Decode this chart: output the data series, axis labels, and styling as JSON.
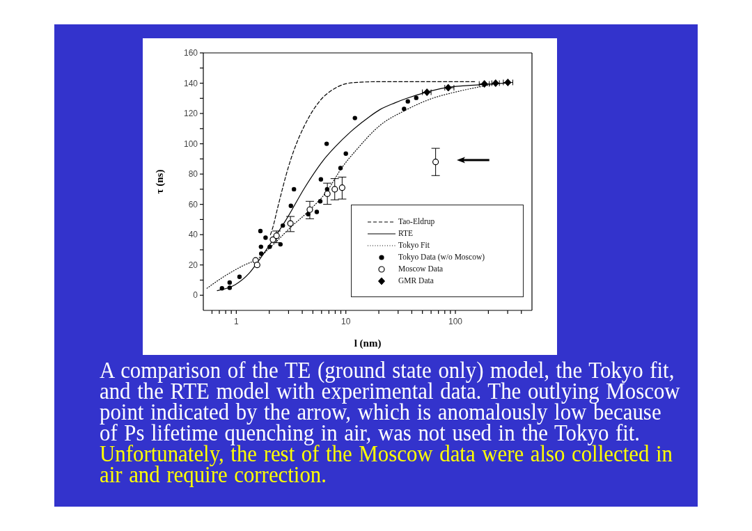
{
  "chart_data": {
    "type": "scatter",
    "xlabel": "l (nm)",
    "ylabel": "τ (ns)",
    "log": "x",
    "legend": "bottom right",
    "xlim": [
      0.5,
      500
    ],
    "ylim": [
      -10,
      160
    ],
    "xticks": [
      {
        "value": 0.6,
        "label": null
      },
      {
        "value": 0.7,
        "label": null
      },
      {
        "value": 0.8,
        "label": null
      },
      {
        "value": 0.9,
        "label": null
      },
      1,
      {
        "value": 2,
        "label": null
      },
      {
        "value": 3,
        "label": null
      },
      {
        "value": 4,
        "label": null
      },
      {
        "value": 5,
        "label": null
      },
      {
        "value": 6,
        "label": null
      },
      {
        "value": 7,
        "label": null
      },
      {
        "value": 8,
        "label": null
      },
      {
        "value": 9,
        "label": null
      },
      10,
      {
        "value": 20,
        "label": null
      },
      {
        "value": 30,
        "label": null
      },
      {
        "value": 40,
        "label": null
      },
      {
        "value": 50,
        "label": null
      },
      {
        "value": 60,
        "label": null
      },
      {
        "value": 70,
        "label": null
      },
      {
        "value": 80,
        "label": null
      },
      {
        "value": 90,
        "label": null
      },
      100,
      {
        "value": 200,
        "label": null
      },
      {
        "value": 300,
        "label": null
      },
      {
        "value": 400,
        "label": null
      }
    ],
    "yticks": [
      0,
      {
        "value": 10,
        "label": null
      },
      20,
      {
        "value": 30,
        "label": null
      },
      40,
      {
        "value": 50,
        "label": null
      },
      60,
      {
        "value": 70,
        "label": null
      },
      80,
      {
        "value": 90,
        "label": null
      },
      100,
      {
        "value": 110,
        "label": null
      },
      120,
      {
        "value": 130,
        "label": null
      },
      140,
      {
        "value": 150,
        "label": null
      },
      160
    ],
    "series": [
      {
        "name": "Tao-Eldrup",
        "type": "line",
        "color": "#000000",
        "line_style": "dashed",
        "marker": "none",
        "x": [
          2.05,
          2.14,
          2.39,
          3.0,
          4.64,
          5.74,
          7.9,
          11.4,
          20,
          150
        ],
        "values": [
          40,
          44,
          58,
          85,
          118,
          128,
          136.5,
          140.3,
          141,
          141
        ]
      },
      {
        "name": "RTE",
        "type": "line",
        "color": "#000000",
        "line_style": "solid",
        "marker": "none",
        "x": [
          0.67,
          0.98,
          1.31,
          1.68,
          2.14,
          2.86,
          4.21,
          6.21,
          8,
          11.1,
          16.5,
          20.4,
          28,
          36,
          54,
          81,
          170,
          320
        ],
        "values": [
          3,
          7,
          14.5,
          25,
          36,
          50,
          71,
          89,
          98,
          108,
          118,
          122.5,
          127,
          130,
          134,
          137,
          139,
          140.3
        ]
      },
      {
        "name": "Tokyo Fit",
        "type": "line",
        "color": "#000000",
        "line_style": "dotted",
        "marker": "none",
        "x": [
          0.54,
          0.74,
          1.19,
          1.52,
          2.14,
          3.15,
          4.64,
          6.85,
          9.15,
          12.5,
          20.4,
          34.7,
          59,
          105,
          179,
          260
        ],
        "values": [
          4.6,
          11.5,
          20,
          23.5,
          33,
          45,
          56,
          69.5,
          84,
          96,
          112,
          122,
          129.5,
          134.5,
          138,
          140
        ]
      },
      {
        "name": "Tokyo Data (w/o Moscow)",
        "color": "#000000",
        "marker": "circle",
        "x": [
          0.74,
          0.87,
          0.87,
          1.07,
          1.66,
          1.68,
          1.69,
          1.85,
          2.02,
          2.53,
          2.66,
          3.15,
          3.36,
          4.53,
          5.43,
          5.84,
          5.92,
          6.68,
          6.75,
          8.94,
          10,
          12.1,
          34,
          36.8,
          43.9
        ],
        "values": [
          4.6,
          4.9,
          8.4,
          12.2,
          42.4,
          32,
          27.5,
          38,
          32,
          33.6,
          46,
          59,
          70,
          53.5,
          55,
          62,
          76.5,
          100,
          70,
          84,
          93.5,
          117,
          123,
          128,
          130.3
        ]
      },
      {
        "name": "Moscow Data",
        "color": "#000000",
        "marker": "circle",
        "x": [
          1.5,
          1.55,
          2.16,
          2.33,
          3.12,
          4.69,
          6.78,
          7.92,
          9.25,
          66
        ],
        "values": [
          23,
          20,
          36.7,
          39.3,
          47.4,
          56.5,
          67,
          70,
          71,
          88
        ],
        "errors": [
          null,
          null,
          null,
          [
            34.7,
            42.4
          ],
          [
            42,
            52
          ],
          [
            50.5,
            62
          ],
          [
            60,
            74
          ],
          [
            63,
            77
          ],
          [
            63.5,
            78
          ],
          [
            79,
            97
          ]
        ]
      },
      {
        "name": "GMR Data",
        "color": "#000000",
        "marker": "diamond",
        "x": [
          55,
          86,
          184,
          233,
          301
        ],
        "values": [
          134,
          137,
          139.5,
          140,
          140.5
        ],
        "xerrors": [
          [
            50,
            60
          ],
          [
            80,
            97
          ],
          [
            165,
            204
          ],
          [
            215,
            252
          ],
          [
            274,
            334
          ]
        ]
      }
    ],
    "annotations": [
      "A comparison of the TE (ground state only) model, the Tokyo fit, and the RTE model with experimental data. The outlying Moscow point indicated by the arrow, which is anomalously low because of Ps lifetime quenching in air, was not used in the Tokyo fit.",
      "Unfortunately, the rest of the Moscow data were also collected in air and require correction."
    ]
  }
}
